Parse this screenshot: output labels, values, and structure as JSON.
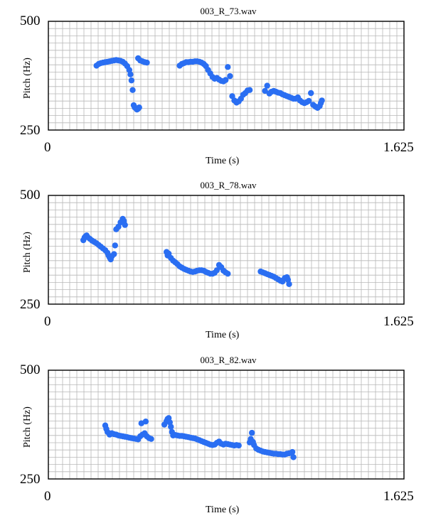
{
  "chart_data": [
    {
      "type": "scatter",
      "title": "003_R_73.wav",
      "xlabel": "Time (s)",
      "ylabel": "Pitch (Hz)",
      "xlim": [
        0,
        1.625
      ],
      "ylim": [
        250,
        500
      ],
      "x_tick_labels": [
        "0",
        "1.625"
      ],
      "y_tick_labels": [
        "500",
        "250"
      ],
      "grid": true,
      "marker_color": "#2a6ef2",
      "series": [
        {
          "points": [
            [
              0.22,
              398
            ],
            [
              0.23,
              402
            ],
            [
              0.24,
              404
            ],
            [
              0.25,
              405
            ],
            [
              0.26,
              406
            ],
            [
              0.27,
              407
            ],
            [
              0.28,
              408
            ],
            [
              0.29,
              409
            ],
            [
              0.3,
              410
            ],
            [
              0.31,
              411
            ],
            [
              0.32,
              410
            ],
            [
              0.33,
              409
            ],
            [
              0.34,
              407
            ],
            [
              0.35,
              403
            ],
            [
              0.36,
              397
            ],
            [
              0.37,
              388
            ],
            [
              0.375,
              378
            ],
            [
              0.38,
              364
            ],
            [
              0.385,
              342
            ],
            [
              0.39,
              307
            ],
            [
              0.395,
              302
            ],
            [
              0.4,
              300
            ],
            [
              0.405,
              297
            ],
            [
              0.41,
              299
            ],
            [
              0.415,
              302
            ],
            [
              0.41,
              415
            ],
            [
              0.42,
              410
            ],
            [
              0.43,
              408
            ],
            [
              0.44,
              406
            ],
            [
              0.45,
              405
            ]
          ]
        },
        {
          "points": [
            [
              0.6,
              398
            ],
            [
              0.61,
              402
            ],
            [
              0.62,
              404
            ],
            [
              0.63,
              406
            ],
            [
              0.64,
              406
            ],
            [
              0.65,
              407
            ],
            [
              0.66,
              407
            ],
            [
              0.67,
              408
            ],
            [
              0.68,
              408
            ],
            [
              0.69,
              407
            ],
            [
              0.7,
              405
            ],
            [
              0.71,
              402
            ],
            [
              0.72,
              397
            ],
            [
              0.73,
              388
            ],
            [
              0.74,
              380
            ],
            [
              0.75,
              372
            ],
            [
              0.76,
              368
            ],
            [
              0.77,
              370
            ],
            [
              0.78,
              366
            ],
            [
              0.79,
              363
            ],
            [
              0.8,
              362
            ],
            [
              0.81,
              365
            ],
            [
              0.82,
              395
            ],
            [
              0.83,
              374
            ],
            [
              0.84,
              328
            ],
            [
              0.85,
              318
            ],
            [
              0.86,
              313
            ],
            [
              0.87,
              316
            ],
            [
              0.88,
              322
            ],
            [
              0.89,
              331
            ],
            [
              0.9,
              335
            ],
            [
              0.91,
              341
            ],
            [
              0.92,
              342
            ]
          ]
        },
        {
          "points": [
            [
              0.99,
              340
            ],
            [
              1.0,
              352
            ],
            [
              1.01,
              334
            ],
            [
              1.02,
              338
            ],
            [
              1.03,
              340
            ],
            [
              1.04,
              338
            ],
            [
              1.05,
              336
            ],
            [
              1.06,
              335
            ],
            [
              1.07,
              332
            ],
            [
              1.08,
              330
            ],
            [
              1.09,
              328
            ],
            [
              1.1,
              326
            ],
            [
              1.11,
              324
            ],
            [
              1.12,
              322
            ],
            [
              1.13,
              322
            ],
            [
              1.14,
              325
            ],
            [
              1.15,
              318
            ],
            [
              1.16,
              314
            ],
            [
              1.17,
              312
            ],
            [
              1.18,
              314
            ],
            [
              1.19,
              317
            ],
            [
              1.2,
              335
            ],
            [
              1.21,
              308
            ],
            [
              1.22,
              304
            ],
            [
              1.23,
              301
            ],
            [
              1.24,
              305
            ],
            [
              1.245,
              312
            ],
            [
              1.25,
              318
            ]
          ]
        }
      ]
    },
    {
      "type": "scatter",
      "title": "003_R_78.wav",
      "xlabel": "Time (s)",
      "ylabel": "Pitch (Hz)",
      "xlim": [
        0,
        1.625
      ],
      "ylim": [
        250,
        500
      ],
      "x_tick_labels": [
        "0",
        "1.625"
      ],
      "y_tick_labels": [
        "500",
        "250"
      ],
      "grid": true,
      "marker_color": "#2a6ef2",
      "series": [
        {
          "points": [
            [
              0.16,
              397
            ],
            [
              0.165,
              403
            ],
            [
              0.17,
              406
            ],
            [
              0.175,
              408
            ],
            [
              0.18,
              404
            ],
            [
              0.19,
              400
            ],
            [
              0.2,
              396
            ],
            [
              0.21,
              393
            ],
            [
              0.22,
              390
            ],
            [
              0.23,
              386
            ],
            [
              0.24,
              382
            ],
            [
              0.25,
              378
            ],
            [
              0.26,
              374
            ],
            [
              0.27,
              368
            ],
            [
              0.275,
              362
            ],
            [
              0.28,
              357
            ],
            [
              0.285,
              353
            ],
            [
              0.29,
              360
            ],
            [
              0.3,
              365
            ],
            [
              0.305,
              385
            ],
            [
              0.31,
              422
            ],
            [
              0.32,
              428
            ],
            [
              0.33,
              438
            ],
            [
              0.34,
              446
            ],
            [
              0.345,
              441
            ],
            [
              0.35,
              432
            ]
          ]
        },
        {
          "points": [
            [
              0.54,
              370
            ],
            [
              0.545,
              362
            ],
            [
              0.55,
              366
            ],
            [
              0.56,
              356
            ],
            [
              0.57,
              350
            ],
            [
              0.58,
              346
            ],
            [
              0.59,
              342
            ],
            [
              0.6,
              337
            ],
            [
              0.61,
              334
            ],
            [
              0.62,
              331
            ],
            [
              0.63,
              329
            ],
            [
              0.64,
              327
            ],
            [
              0.65,
              325
            ],
            [
              0.66,
              324
            ],
            [
              0.67,
              325
            ],
            [
              0.68,
              327
            ],
            [
              0.69,
              328
            ],
            [
              0.7,
              328
            ],
            [
              0.71,
              327
            ],
            [
              0.72,
              324
            ],
            [
              0.73,
              322
            ],
            [
              0.74,
              320
            ],
            [
              0.75,
              320
            ],
            [
              0.76,
              322
            ],
            [
              0.77,
              328
            ],
            [
              0.78,
              340
            ],
            [
              0.79,
              335
            ],
            [
              0.8,
              327
            ],
            [
              0.81,
              323
            ],
            [
              0.82,
              320
            ]
          ]
        },
        {
          "points": [
            [
              0.97,
              325
            ],
            [
              0.98,
              323
            ],
            [
              0.99,
              321
            ],
            [
              1.0,
              319
            ],
            [
              1.01,
              317
            ],
            [
              1.02,
              315
            ],
            [
              1.03,
              313
            ],
            [
              1.04,
              310
            ],
            [
              1.05,
              307
            ],
            [
              1.06,
              304
            ],
            [
              1.07,
              302
            ],
            [
              1.08,
              310
            ],
            [
              1.09,
              312
            ],
            [
              1.095,
              306
            ],
            [
              1.1,
              296
            ]
          ]
        }
      ]
    },
    {
      "type": "scatter",
      "title": "003_R_82.wav",
      "xlabel": "Time (s)",
      "ylabel": "Pitch (Hz)",
      "xlim": [
        0,
        1.625
      ],
      "ylim": [
        250,
        500
      ],
      "x_tick_labels": [
        "0",
        "1.625"
      ],
      "y_tick_labels": [
        "500",
        "250"
      ],
      "grid": true,
      "marker_color": "#2a6ef2",
      "series": [
        {
          "points": [
            [
              0.26,
              373
            ],
            [
              0.265,
              365
            ],
            [
              0.27,
              358
            ],
            [
              0.28,
              352
            ],
            [
              0.29,
              355
            ],
            [
              0.3,
              353
            ],
            [
              0.31,
              352
            ],
            [
              0.32,
              350
            ],
            [
              0.33,
              349
            ],
            [
              0.34,
              348
            ],
            [
              0.35,
              347
            ],
            [
              0.36,
              346
            ],
            [
              0.37,
              345
            ],
            [
              0.38,
              344
            ],
            [
              0.39,
              343
            ],
            [
              0.4,
              342
            ],
            [
              0.41,
              341
            ],
            [
              0.42,
              348
            ],
            [
              0.425,
              378
            ],
            [
              0.43,
              352
            ],
            [
              0.44,
              355
            ],
            [
              0.445,
              382
            ],
            [
              0.45,
              348
            ],
            [
              0.46,
              344
            ],
            [
              0.47,
              342
            ]
          ]
        },
        {
          "points": [
            [
              0.53,
              375
            ],
            [
              0.54,
              383
            ],
            [
              0.545,
              388
            ],
            [
              0.55,
              390
            ],
            [
              0.555,
              380
            ],
            [
              0.56,
              370
            ],
            [
              0.565,
              358
            ],
            [
              0.57,
              350
            ],
            [
              0.58,
              351
            ],
            [
              0.59,
              350
            ],
            [
              0.6,
              349
            ],
            [
              0.61,
              349
            ],
            [
              0.62,
              348
            ],
            [
              0.63,
              347
            ],
            [
              0.64,
              346
            ],
            [
              0.65,
              345
            ],
            [
              0.66,
              344
            ],
            [
              0.67,
              343
            ],
            [
              0.68,
              341
            ],
            [
              0.69,
              339
            ],
            [
              0.7,
              337
            ],
            [
              0.71,
              335
            ],
            [
              0.72,
              333
            ],
            [
              0.73,
              331
            ],
            [
              0.74,
              329
            ],
            [
              0.75,
              328
            ],
            [
              0.76,
              329
            ],
            [
              0.77,
              333
            ],
            [
              0.78,
              336
            ],
            [
              0.79,
              331
            ],
            [
              0.8,
              329
            ],
            [
              0.81,
              331
            ],
            [
              0.82,
              330
            ],
            [
              0.83,
              329
            ],
            [
              0.84,
              328
            ],
            [
              0.85,
              327
            ],
            [
              0.86,
              328
            ],
            [
              0.87,
              327
            ]
          ]
        },
        {
          "points": [
            [
              0.92,
              334
            ],
            [
              0.925,
              342
            ],
            [
              0.93,
              356
            ],
            [
              0.935,
              335
            ],
            [
              0.94,
              328
            ],
            [
              0.95,
              320
            ],
            [
              0.96,
              317
            ],
            [
              0.97,
              315
            ],
            [
              0.98,
              313
            ],
            [
              0.99,
              312
            ],
            [
              1.0,
              311
            ],
            [
              1.01,
              310
            ],
            [
              1.02,
              309
            ],
            [
              1.03,
              308
            ],
            [
              1.04,
              308
            ],
            [
              1.05,
              307
            ],
            [
              1.06,
              307
            ],
            [
              1.07,
              306
            ],
            [
              1.08,
              306
            ],
            [
              1.09,
              308
            ],
            [
              1.1,
              309
            ],
            [
              1.11,
              310
            ],
            [
              1.115,
              312
            ],
            [
              1.12,
              300
            ]
          ]
        }
      ]
    }
  ]
}
